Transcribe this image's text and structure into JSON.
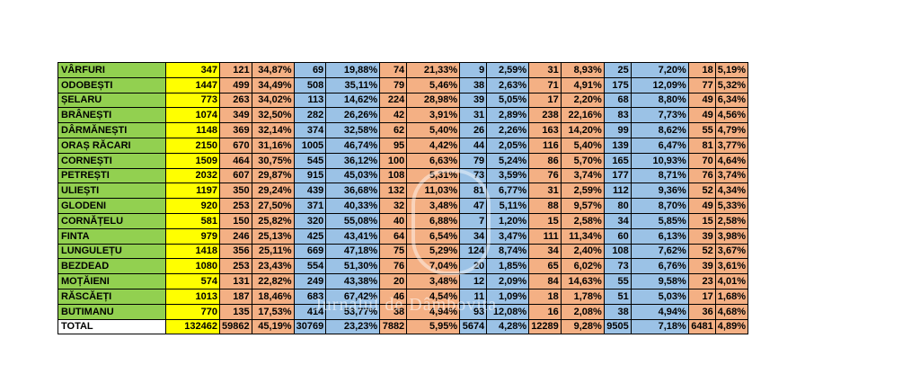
{
  "table": {
    "rows": [
      {
        "name": "VÂRFURI",
        "total": "347",
        "cells": [
          "121",
          "34,87%",
          "69",
          "19,88%",
          "74",
          "21,33%",
          "9",
          "2,59%",
          "31",
          "8,93%",
          "25",
          "7,20%",
          "18",
          "5,19%"
        ]
      },
      {
        "name": "ODOBEȘTI",
        "total": "1447",
        "cells": [
          "499",
          "34,49%",
          "508",
          "35,11%",
          "79",
          "5,46%",
          "38",
          "2,63%",
          "71",
          "4,91%",
          "175",
          "12,09%",
          "77",
          "5,32%"
        ]
      },
      {
        "name": "ȘELARU",
        "total": "773",
        "cells": [
          "263",
          "34,02%",
          "113",
          "14,62%",
          "224",
          "28,98%",
          "39",
          "5,05%",
          "17",
          "2,20%",
          "68",
          "8,80%",
          "49",
          "6,34%"
        ]
      },
      {
        "name": "BRÂNEȘTI",
        "total": "1074",
        "cells": [
          "349",
          "32,50%",
          "282",
          "26,26%",
          "42",
          "3,91%",
          "31",
          "2,89%",
          "238",
          "22,16%",
          "83",
          "7,73%",
          "49",
          "4,56%"
        ]
      },
      {
        "name": "DÂRMĂNEȘTI",
        "total": "1148",
        "cells": [
          "369",
          "32,14%",
          "374",
          "32,58%",
          "62",
          "5,40%",
          "26",
          "2,26%",
          "163",
          "14,20%",
          "99",
          "8,62%",
          "55",
          "4,79%"
        ]
      },
      {
        "name": "ORAȘ RĂCARI",
        "total": "2150",
        "cells": [
          "670",
          "31,16%",
          "1005",
          "46,74%",
          "95",
          "4,42%",
          "44",
          "2,05%",
          "116",
          "5,40%",
          "139",
          "6,47%",
          "81",
          "3,77%"
        ]
      },
      {
        "name": "CORNEȘTI",
        "total": "1509",
        "cells": [
          "464",
          "30,75%",
          "545",
          "36,12%",
          "100",
          "6,63%",
          "79",
          "5,24%",
          "86",
          "5,70%",
          "165",
          "10,93%",
          "70",
          "4,64%"
        ]
      },
      {
        "name": "PETREȘTI",
        "total": "2032",
        "cells": [
          "607",
          "29,87%",
          "915",
          "45,03%",
          "108",
          "5,31%",
          "73",
          "3,59%",
          "76",
          "3,74%",
          "177",
          "8,71%",
          "76",
          "3,74%"
        ]
      },
      {
        "name": "ULIEȘTI",
        "total": "1197",
        "cells": [
          "350",
          "29,24%",
          "439",
          "36,68%",
          "132",
          "11,03%",
          "81",
          "6,77%",
          "31",
          "2,59%",
          "112",
          "9,36%",
          "52",
          "4,34%"
        ]
      },
      {
        "name": "GLODENI",
        "total": "920",
        "cells": [
          "253",
          "27,50%",
          "371",
          "40,33%",
          "32",
          "3,48%",
          "47",
          "5,11%",
          "88",
          "9,57%",
          "80",
          "8,70%",
          "49",
          "5,33%"
        ]
      },
      {
        "name": "CORNĂȚELU",
        "total": "581",
        "cells": [
          "150",
          "25,82%",
          "320",
          "55,08%",
          "40",
          "6,88%",
          "7",
          "1,20%",
          "15",
          "2,58%",
          "34",
          "5,85%",
          "15",
          "2,58%"
        ]
      },
      {
        "name": "FINTA",
        "total": "979",
        "cells": [
          "246",
          "25,13%",
          "425",
          "43,41%",
          "64",
          "6,54%",
          "34",
          "3,47%",
          "111",
          "11,34%",
          "60",
          "6,13%",
          "39",
          "3,98%"
        ]
      },
      {
        "name": "LUNGULEȚU",
        "total": "1418",
        "cells": [
          "356",
          "25,11%",
          "669",
          "47,18%",
          "75",
          "5,29%",
          "124",
          "8,74%",
          "34",
          "2,40%",
          "108",
          "7,62%",
          "52",
          "3,67%"
        ]
      },
      {
        "name": "BEZDEAD",
        "total": "1080",
        "cells": [
          "253",
          "23,43%",
          "554",
          "51,30%",
          "76",
          "7,04%",
          "20",
          "1,85%",
          "65",
          "6,02%",
          "73",
          "6,76%",
          "39",
          "3,61%"
        ]
      },
      {
        "name": "MOȚĂIENI",
        "total": "574",
        "cells": [
          "131",
          "22,82%",
          "249",
          "43,38%",
          "20",
          "3,48%",
          "12",
          "2,09%",
          "84",
          "14,63%",
          "55",
          "9,58%",
          "23",
          "4,01%"
        ]
      },
      {
        "name": "RĂSCĂEȚI",
        "total": "1013",
        "cells": [
          "187",
          "18,46%",
          "683",
          "67,42%",
          "46",
          "4,54%",
          "11",
          "1,09%",
          "18",
          "1,78%",
          "51",
          "5,03%",
          "17",
          "1,68%"
        ]
      },
      {
        "name": "BUTIMANU",
        "total": "770",
        "cells": [
          "135",
          "17,53%",
          "414",
          "53,77%",
          "38",
          "4,94%",
          "93",
          "12,08%",
          "16",
          "2,08%",
          "38",
          "4,94%",
          "36",
          "4,68%"
        ]
      },
      {
        "name": "TOTAL",
        "total": "132462",
        "cells": [
          "59862",
          "45,19%",
          "30769",
          "23,23%",
          "7882",
          "5,95%",
          "5674",
          "4,28%",
          "12289",
          "9,28%",
          "9505",
          "7,18%",
          "6481",
          "4,89%"
        ]
      }
    ],
    "col_colors": [
      "orange",
      "orange",
      "blue",
      "blue",
      "orange",
      "orange",
      "blue",
      "blue",
      "orange",
      "orange",
      "blue",
      "blue",
      "orange",
      "orange"
    ]
  },
  "watermark": {
    "text": "Jurnalul de Dâmbovița"
  }
}
